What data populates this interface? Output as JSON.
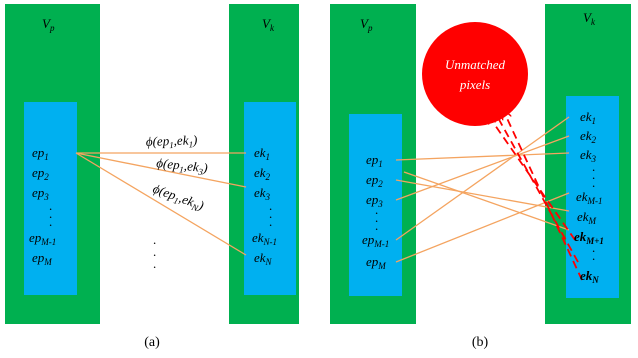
{
  "colors": {
    "green": "#00b050",
    "blue": "#00b0f0",
    "orange": "#f4a460",
    "red": "#ff0000"
  },
  "panel_a": {
    "caption": "(a)",
    "vp_main": "V",
    "vp_sub": "p",
    "vk_main": "V",
    "vk_sub": "k",
    "left_items": [
      {
        "main": "ep",
        "sub": "1"
      },
      {
        "main": "ep",
        "sub": "2"
      },
      {
        "main": "ep",
        "sub": "3"
      },
      {
        "main": "ep",
        "sub": "M-1"
      },
      {
        "main": "ep",
        "sub": "M"
      }
    ],
    "right_items": [
      {
        "main": "ek",
        "sub": "1"
      },
      {
        "main": "ek",
        "sub": "2"
      },
      {
        "main": "ek",
        "sub": "3"
      },
      {
        "main": "ek",
        "sub": "N-1"
      },
      {
        "main": "ek",
        "sub": "N"
      }
    ],
    "phi1": {
      "pre": "ϕ(ep",
      "s1": "1",
      "mid": ",ek",
      "s2": "1",
      "post": ")"
    },
    "phi2": {
      "pre": "ϕ(ep",
      "s1": "1",
      "mid": ",ek",
      "s2": "3",
      "post": ")"
    },
    "phi3": {
      "pre": "ϕ(ep",
      "s1": "1",
      "mid": ",ek",
      "s2": "N",
      "post": ")"
    }
  },
  "panel_b": {
    "caption": "(b)",
    "vp_main": "V",
    "vp_sub": "p",
    "vk_main": "V",
    "vk_sub": "k",
    "unmatched_line1": "Unmatched",
    "unmatched_line2": "pixels",
    "left_items": [
      {
        "main": "ep",
        "sub": "1"
      },
      {
        "main": "ep",
        "sub": "2"
      },
      {
        "main": "ep",
        "sub": "3"
      },
      {
        "main": "ep",
        "sub": "M-1"
      },
      {
        "main": "ep",
        "sub": "M"
      }
    ],
    "right_items": [
      {
        "main": "ek",
        "sub": "1"
      },
      {
        "main": "ek",
        "sub": "2"
      },
      {
        "main": "ek",
        "sub": "3"
      },
      {
        "main": "ek",
        "sub": "M-1"
      },
      {
        "main": "ek",
        "sub": "M"
      },
      {
        "main": "ek",
        "sub": "M+1"
      },
      {
        "main": "ek",
        "sub": "N"
      }
    ]
  }
}
